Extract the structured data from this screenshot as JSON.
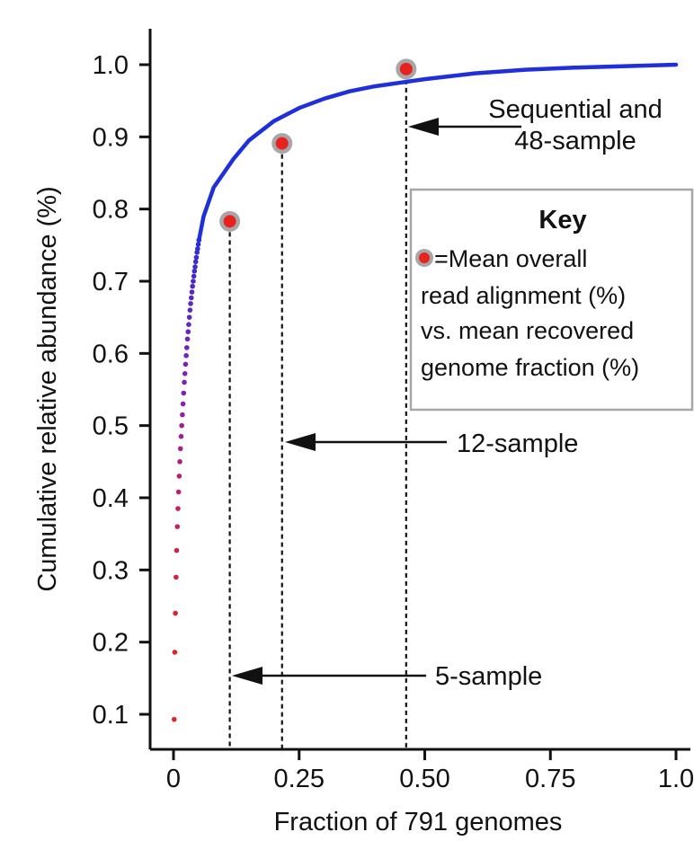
{
  "chart_data": {
    "type": "scatter",
    "title": "",
    "xlabel": "Fraction of 791 genomes",
    "ylabel": "Cumulative relative abundance (%)",
    "xlim": [
      -0.045,
      1.035
    ],
    "ylim": [
      0.05,
      1.05
    ],
    "x_ticks": [
      0,
      0.25,
      0.5,
      0.75,
      1.0
    ],
    "x_tick_labels": [
      "0",
      "0.25",
      "0.50",
      "0.75",
      "1.0"
    ],
    "y_ticks": [
      0.1,
      0.2,
      0.3,
      0.4,
      0.5,
      0.6,
      0.7,
      0.8,
      0.9,
      1.0
    ],
    "y_tick_labels": [
      "0.1",
      "0.2",
      "0.3",
      "0.4",
      "0.5",
      "0.6",
      "0.7",
      "0.8",
      "0.9",
      "1.0"
    ],
    "grid": false,
    "series": [
      {
        "values_description_points": "cumulative abundance curve",
        "color_start": "#e8231f",
        "color_mid": "#8a1fb5",
        "color_end": "#1f2fd9",
        "x": [
          0.0013,
          0.0025,
          0.0038,
          0.0051,
          0.0063,
          0.0076,
          0.0089,
          0.0101,
          0.0114,
          0.0126,
          0.0139,
          0.0152,
          0.0164,
          0.0177,
          0.019,
          0.0202,
          0.0215,
          0.0228,
          0.024,
          0.0253,
          0.0265,
          0.0278,
          0.0291,
          0.0303,
          0.0316,
          0.0329,
          0.0341,
          0.0354,
          0.0367,
          0.0379,
          0.0392,
          0.0405,
          0.0417,
          0.043,
          0.0442,
          0.0455,
          0.0468,
          0.048,
          0.0493,
          0.0506,
          0.06,
          0.08,
          0.1,
          0.12,
          0.15,
          0.2,
          0.25,
          0.3,
          0.35,
          0.4,
          0.46,
          0.5,
          0.55,
          0.6,
          0.7,
          0.8,
          0.9,
          1.0
        ],
        "y": [
          0.093,
          0.186,
          0.24,
          0.29,
          0.327,
          0.36,
          0.385,
          0.408,
          0.43,
          0.45,
          0.468,
          0.485,
          0.5,
          0.515,
          0.53,
          0.545,
          0.56,
          0.572,
          0.585,
          0.597,
          0.608,
          0.62,
          0.63,
          0.64,
          0.65,
          0.66,
          0.669,
          0.677,
          0.685,
          0.693,
          0.7,
          0.707,
          0.714,
          0.72,
          0.727,
          0.733,
          0.74,
          0.745,
          0.751,
          0.757,
          0.79,
          0.83,
          0.85,
          0.87,
          0.895,
          0.922,
          0.94,
          0.953,
          0.963,
          0.97,
          0.976,
          0.98,
          0.984,
          0.988,
          0.993,
          0.996,
          0.998,
          1.0
        ]
      }
    ],
    "markers": [
      {
        "label": "5-sample",
        "x": 0.112,
        "y": 0.783
      },
      {
        "label": "12-sample",
        "x": 0.216,
        "y": 0.891
      },
      {
        "label": "Sequential and 48-sample",
        "x": 0.463,
        "y": 0.994
      }
    ],
    "annotations": [
      {
        "lines": [
          "Sequential and",
          "48-sample"
        ]
      },
      {
        "lines": [
          "12-sample"
        ]
      },
      {
        "lines": [
          "5-sample"
        ]
      }
    ],
    "key": {
      "title": "Key",
      "lines": [
        "=Mean overall",
        "read alignment (%)",
        "vs. mean recovered",
        "genome fraction (%)"
      ]
    },
    "colors": {
      "marker_fill": "#e8231f",
      "marker_ring": "#a7a7a7",
      "key_border": "#a7a7a7",
      "axis": "#111111"
    }
  }
}
